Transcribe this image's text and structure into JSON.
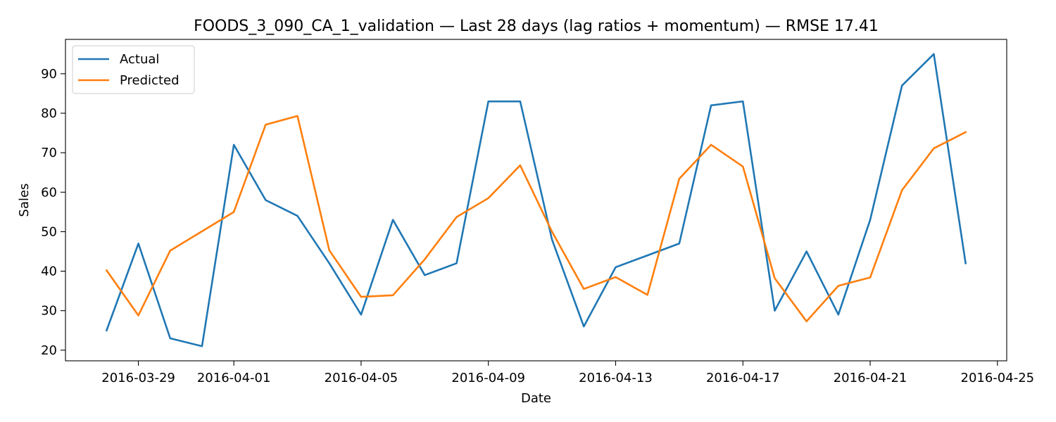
{
  "chart_data": {
    "type": "line",
    "title": "FOODS_3_090_CA_1_validation — Last 28 days (lag ratios + momentum) — RMSE 17.41",
    "xlabel": "Date",
    "ylabel": "Sales",
    "x": [
      "2016-03-28",
      "2016-03-29",
      "2016-03-30",
      "2016-03-31",
      "2016-04-01",
      "2016-04-02",
      "2016-04-03",
      "2016-04-04",
      "2016-04-05",
      "2016-04-06",
      "2016-04-07",
      "2016-04-08",
      "2016-04-09",
      "2016-04-10",
      "2016-04-11",
      "2016-04-12",
      "2016-04-13",
      "2016-04-14",
      "2016-04-15",
      "2016-04-16",
      "2016-04-17",
      "2016-04-18",
      "2016-04-19",
      "2016-04-20",
      "2016-04-21",
      "2016-04-22",
      "2016-04-23",
      "2016-04-24"
    ],
    "xlim": [
      "2016-03-26T17:00",
      "2016-04-25T07:00"
    ],
    "xticks": [
      "2016-03-29",
      "2016-04-01",
      "2016-04-05",
      "2016-04-09",
      "2016-04-13",
      "2016-04-17",
      "2016-04-21",
      "2016-04-25"
    ],
    "ylim": [
      17.3,
      98.7
    ],
    "yticks": [
      20,
      30,
      40,
      50,
      60,
      70,
      80,
      90
    ],
    "grid": false,
    "legend": "top-left",
    "series": [
      {
        "name": "Actual",
        "color": "#1f77b4",
        "values": [
          25,
          47,
          23,
          21,
          72,
          58,
          54,
          42,
          29,
          53,
          39,
          42,
          83,
          83,
          48,
          26,
          41,
          44,
          47,
          82,
          83,
          30,
          45,
          29,
          53,
          87,
          95,
          42
        ]
      },
      {
        "name": "Predicted",
        "color": "#ff7f0e",
        "values": [
          40.2,
          28.8,
          45.2,
          50.1,
          55.0,
          77.1,
          79.3,
          45.3,
          33.5,
          33.9,
          43.0,
          53.7,
          58.5,
          66.8,
          50.0,
          35.5,
          38.5,
          34.0,
          63.4,
          72.0,
          66.5,
          38.2,
          27.3,
          36.3,
          38.4,
          60.5,
          71.1,
          75.2
        ]
      }
    ]
  }
}
